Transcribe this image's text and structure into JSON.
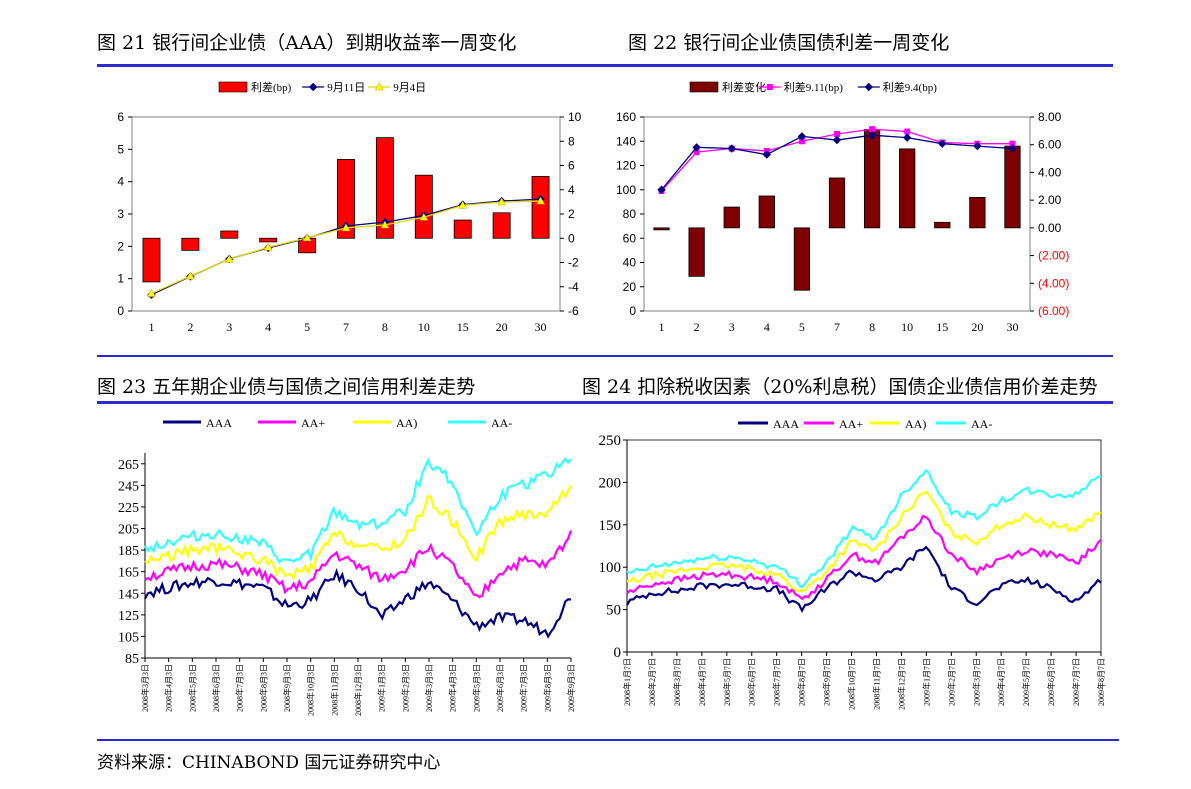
{
  "figures": {
    "fig21_title": "图 21 银行间企业债（AAA）到期收益率一周变化",
    "fig22_title": "图 22 银行间企业债国债利差一周变化",
    "fig23_title": "图 23 五年期企业债与国债之间信用利差走势",
    "fig24_title": "图 24 扣除税收因素（20%利息税）国债企业债信用价差走势"
  },
  "source": "资料来源：CHINABOND 国元证券研究中心",
  "chart_data": [
    {
      "id": "fig21",
      "type": "bar",
      "categories": [
        "1",
        "2",
        "3",
        "4",
        "5",
        "7",
        "8",
        "10",
        "15",
        "20",
        "30"
      ],
      "legend": [
        "利差(bp)",
        "9月11日",
        "9月4日"
      ],
      "ylim_left": [
        0,
        6
      ],
      "yticks_left": [
        "0",
        "1",
        "2",
        "3",
        "4",
        "5",
        "6"
      ],
      "ylim_right": [
        -6,
        10
      ],
      "yticks_right": [
        "-6",
        "-4",
        "-2",
        "0",
        "2",
        "4",
        "6",
        "8",
        "10"
      ],
      "series": [
        {
          "name": "利差(bp)",
          "axis": "right",
          "kind": "bar",
          "color": "#ff0000",
          "values": [
            -3.6,
            -1.0,
            0.6,
            -0.3,
            -1.2,
            6.5,
            8.3,
            5.2,
            1.5,
            2.1,
            5.1
          ]
        },
        {
          "name": "9月11日",
          "axis": "left",
          "kind": "line",
          "color": "#000080",
          "values": [
            0.5,
            1.07,
            1.61,
            1.95,
            2.25,
            2.63,
            2.75,
            2.95,
            3.29,
            3.4,
            3.46
          ]
        },
        {
          "name": "9月4日",
          "axis": "left",
          "kind": "line",
          "color": "#ffff00",
          "values": [
            0.54,
            1.08,
            1.6,
            1.97,
            2.26,
            2.57,
            2.66,
            2.9,
            3.27,
            3.37,
            3.4
          ]
        }
      ]
    },
    {
      "id": "fig22",
      "type": "bar",
      "categories": [
        "1",
        "2",
        "3",
        "4",
        "5",
        "7",
        "8",
        "10",
        "15",
        "20",
        "30"
      ],
      "legend": [
        "利差变化",
        "利差9.11(bp)",
        "利差9.4(bp)"
      ],
      "ylim_left": [
        0,
        160
      ],
      "yticks_left": [
        "0",
        "20",
        "40",
        "60",
        "80",
        "100",
        "120",
        "140",
        "160"
      ],
      "ylim_right": [
        -6,
        8
      ],
      "yticks_right": [
        "(6.00)",
        "(4.00)",
        "(2.00)",
        "0.00",
        "2.00",
        "4.00",
        "6.00",
        "8.00"
      ],
      "series": [
        {
          "name": "利差变化",
          "axis": "right",
          "kind": "bar",
          "color": "#7f0000",
          "values": [
            0.0,
            -3.5,
            1.5,
            2.3,
            -4.5,
            3.6,
            7.1,
            5.7,
            0.4,
            2.2,
            5.9
          ]
        },
        {
          "name": "利差9.11(bp)",
          "axis": "left",
          "kind": "line",
          "color": "#ff00ff",
          "values": [
            99,
            131,
            134,
            132,
            140,
            146,
            150,
            148,
            139,
            138,
            138
          ]
        },
        {
          "name": "利差9.4(bp)",
          "axis": "left",
          "kind": "line",
          "color": "#000080",
          "values": [
            100,
            135,
            134,
            129,
            144,
            141,
            145,
            143,
            138,
            136,
            134
          ]
        }
      ]
    },
    {
      "id": "fig23",
      "type": "line",
      "legend": [
        "AAA",
        "AA+",
        "AA)",
        "AA-"
      ],
      "ylim": [
        85,
        275
      ],
      "yticks": [
        "85",
        "105",
        "125",
        "145",
        "165",
        "185",
        "205",
        "225",
        "245",
        "265"
      ],
      "xticks": [
        "2008年3月3日",
        "2008年4月3日",
        "2008年5月3日",
        "2008年6月3日",
        "2008年7月3日",
        "2008年8月3日",
        "2008年9月3日",
        "2008年10月3日",
        "2008年11月3日",
        "2008年12月3日",
        "2009年1月3日",
        "2009年2月3日",
        "2009年3月3日",
        "2009年4月3日",
        "2009年5月3日",
        "2009年6月3日",
        "2009年7月3日",
        "2009年8月3日",
        "2009年9月3日"
      ],
      "series": [
        {
          "name": "AAA",
          "color": "#000080",
          "values": [
            145,
            150,
            155,
            157,
            154,
            150,
            133,
            138,
            162,
            150,
            122,
            140,
            155,
            138,
            115,
            122,
            120,
            108,
            143
          ]
        },
        {
          "name": "AA+",
          "color": "#ff00ff",
          "values": [
            160,
            165,
            170,
            172,
            168,
            162,
            148,
            155,
            182,
            170,
            158,
            168,
            188,
            170,
            138,
            165,
            175,
            170,
            200
          ]
        },
        {
          "name": "AA)",
          "color": "#ffff00",
          "values": [
            175,
            180,
            185,
            187,
            182,
            176,
            160,
            168,
            200,
            190,
            185,
            195,
            232,
            212,
            178,
            212,
            218,
            220,
            245
          ]
        },
        {
          "name": "AA-",
          "color": "#33ffff",
          "values": [
            187,
            192,
            198,
            200,
            196,
            190,
            172,
            182,
            220,
            210,
            210,
            222,
            268,
            248,
            200,
            235,
            245,
            255,
            272
          ]
        }
      ]
    },
    {
      "id": "fig24",
      "type": "line",
      "legend": [
        "AAA",
        "AA+",
        "AA)",
        "AA-"
      ],
      "ylim": [
        0,
        250
      ],
      "yticks": [
        "0",
        "50",
        "100",
        "150",
        "200",
        "250"
      ],
      "xticks": [
        "2008年1月7日",
        "2008年2月7日",
        "2008年3月7日",
        "2008年4月7日",
        "2008年5月7日",
        "2008年6月7日",
        "2008年7月7日",
        "2008年8月7日",
        "2008年9月7日",
        "2008年10月7日",
        "2008年11月7日",
        "2008年12月7日",
        "2009年1月7日",
        "2009年2月7日",
        "2009年3月7日",
        "2009年4月7日",
        "2009年5月7日",
        "2009年6月7日",
        "2009年7月7日",
        "2009年8月7日"
      ],
      "series": [
        {
          "name": "AAA",
          "color": "#000080",
          "values": [
            58,
            70,
            72,
            78,
            80,
            78,
            74,
            50,
            75,
            95,
            85,
            100,
            125,
            75,
            58,
            78,
            85,
            75,
            60,
            85
          ]
        },
        {
          "name": "AA+",
          "color": "#ff00ff",
          "values": [
            70,
            80,
            85,
            90,
            92,
            88,
            84,
            62,
            85,
            115,
            105,
            135,
            160,
            115,
            95,
            110,
            120,
            115,
            105,
            130
          ]
        },
        {
          "name": "AA)",
          "color": "#ffff00",
          "values": [
            82,
            90,
            95,
            100,
            102,
            98,
            92,
            70,
            95,
            130,
            120,
            160,
            190,
            140,
            130,
            150,
            160,
            150,
            145,
            165
          ]
        },
        {
          "name": "AA-",
          "color": "#33ffff",
          "values": [
            92,
            100,
            105,
            110,
            112,
            108,
            100,
            80,
            105,
            145,
            135,
            185,
            215,
            165,
            160,
            178,
            190,
            185,
            185,
            210
          ]
        }
      ]
    }
  ]
}
